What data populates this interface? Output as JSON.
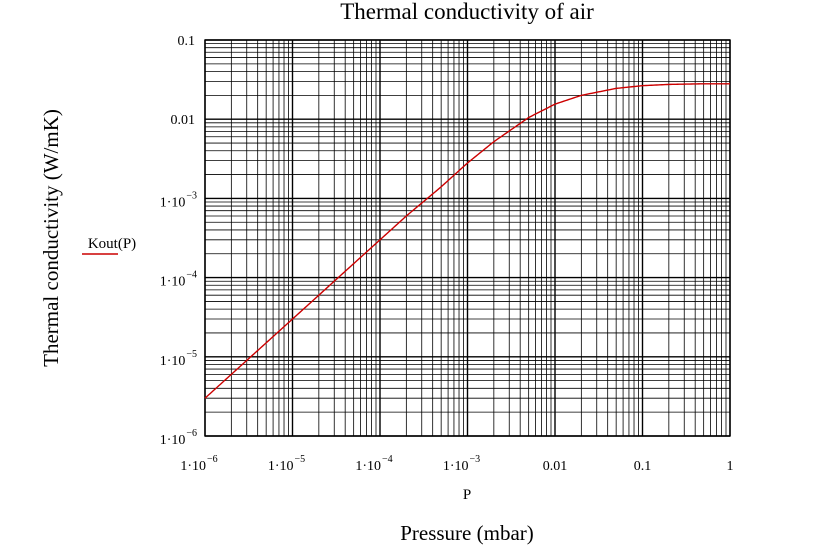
{
  "chart_data": {
    "type": "line",
    "title": "Thermal conductivity of air",
    "xlabel": "Pressure (mbar)",
    "ylabel": "Thermal conductivity (W/mK)",
    "x_variable": "P",
    "xscale": "log",
    "yscale": "log",
    "xlim": [
      1e-06,
      1
    ],
    "ylim": [
      1e-06,
      0.1
    ],
    "grid": true,
    "legend": "left",
    "line_color": "#cc0000",
    "x_ticks": [
      {
        "value": 1e-06,
        "mantissa": "1·10",
        "exp": "−6"
      },
      {
        "value": 1e-05,
        "mantissa": "1·10",
        "exp": "−5"
      },
      {
        "value": 0.0001,
        "mantissa": "1·10",
        "exp": "−4"
      },
      {
        "value": 0.001,
        "mantissa": "1·10",
        "exp": "−3"
      },
      {
        "value": 0.01,
        "mantissa": "0.01",
        "exp": ""
      },
      {
        "value": 0.1,
        "mantissa": "0.1",
        "exp": ""
      },
      {
        "value": 1,
        "mantissa": "1",
        "exp": ""
      }
    ],
    "y_ticks": [
      {
        "value": 1e-06,
        "mantissa": "1·10",
        "exp": "−6"
      },
      {
        "value": 1e-05,
        "mantissa": "1·10",
        "exp": "−5"
      },
      {
        "value": 0.0001,
        "mantissa": "1·10",
        "exp": "−4"
      },
      {
        "value": 0.001,
        "mantissa": "1·10",
        "exp": "−3"
      },
      {
        "value": 0.01,
        "mantissa": "0.01",
        "exp": ""
      },
      {
        "value": 0.1,
        "mantissa": "0.1",
        "exp": ""
      }
    ],
    "series": [
      {
        "name": "Kout(P)",
        "x": [
          1e-06,
          2e-06,
          5e-06,
          1e-05,
          2e-05,
          5e-05,
          0.0001,
          0.0002,
          0.0005,
          0.001,
          0.002,
          0.005,
          0.01,
          0.02,
          0.05,
          0.1,
          0.2,
          0.5,
          1
        ],
        "y": [
          3e-06,
          6e-06,
          1.5e-05,
          3e-05,
          6e-05,
          0.00015,
          0.0003,
          0.0006,
          0.0014,
          0.0028,
          0.0052,
          0.0105,
          0.0155,
          0.02,
          0.0245,
          0.0265,
          0.0275,
          0.028,
          0.028
        ]
      }
    ]
  }
}
